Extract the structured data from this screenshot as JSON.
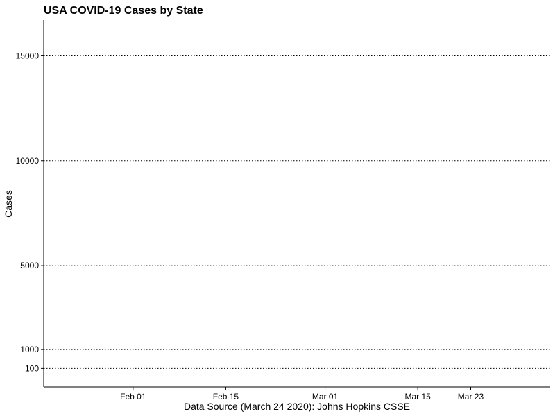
{
  "chart_data": {
    "type": "line",
    "title": "USA COVID-19 Cases by State",
    "xlabel": "Data Source (March 24 2020): Johns Hopkins CSSE",
    "ylabel": "Cases",
    "series": [],
    "x_ticks": [
      {
        "label": "Feb 01",
        "day": 31
      },
      {
        "label": "Feb 15",
        "day": 45
      },
      {
        "label": "Mar 01",
        "day": 60
      },
      {
        "label": "Mar 15",
        "day": 74
      },
      {
        "label": "Mar 23",
        "day": 82
      }
    ],
    "y_ticks": [
      100,
      1000,
      5000,
      10000,
      15000
    ],
    "xlim": [
      17.5,
      94
    ],
    "ylim": [
      -780,
      16700
    ],
    "grid": "horizontal-dotted",
    "legend": "none"
  }
}
